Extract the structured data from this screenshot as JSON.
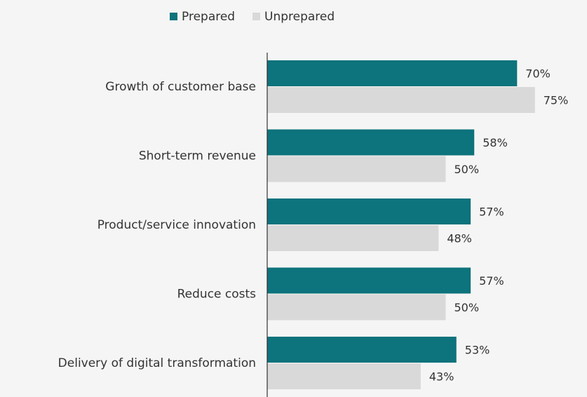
{
  "chart_data": {
    "type": "bar",
    "orientation": "horizontal",
    "title": "",
    "xlabel": "",
    "ylabel": "",
    "xlim": [
      0,
      80
    ],
    "grid": false,
    "legend_position": "top",
    "categories": [
      "Growth of customer base",
      "Short-term revenue",
      "Product/service innovation",
      "Reduce costs",
      "Delivery of digital transformation"
    ],
    "series": [
      {
        "name": "Prepared",
        "color": "#0d737c",
        "values": [
          70,
          58,
          57,
          57,
          53
        ],
        "labels": [
          "70%",
          "58%",
          "57%",
          "57%",
          "53%"
        ]
      },
      {
        "name": "Unprepared",
        "color": "#d9d9d9",
        "values": [
          75,
          50,
          48,
          50,
          43
        ],
        "labels": [
          "75%",
          "50%",
          "48%",
          "50%",
          "43%"
        ]
      }
    ]
  }
}
